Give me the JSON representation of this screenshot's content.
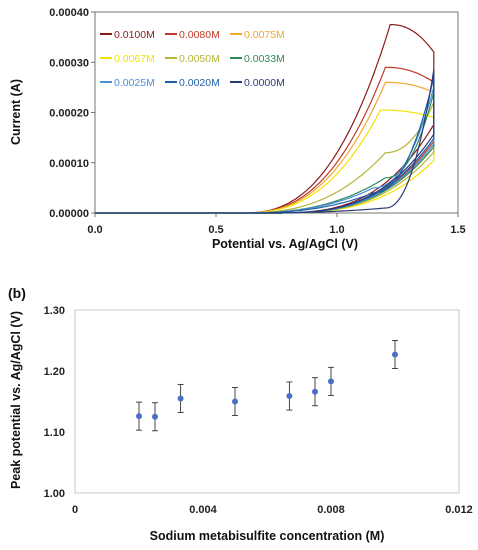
{
  "chart_data": [
    {
      "panel": "",
      "type": "line",
      "title": "",
      "xlabel": "Potential vs. Ag/AgCl (V)",
      "ylabel": "Current (A)",
      "xlim": [
        0,
        1.5
      ],
      "ylim": [
        0,
        0.0004
      ],
      "xticks": [
        0,
        0.5,
        1,
        1.5
      ],
      "xtick_labels": [
        "0.0",
        "0.5",
        "1.0",
        "1.5"
      ],
      "yticks": [
        0,
        0.0001,
        0.0002,
        0.0003,
        0.0004
      ],
      "ytick_labels": [
        "0.00000",
        "0.00010",
        "0.00020",
        "0.00030",
        "0.00040"
      ],
      "grid": false,
      "legend_position": "top-left",
      "series": [
        {
          "name": "0.0100M",
          "color": "#8b1a1a",
          "peak_x": 1.22,
          "peak_y": 0.000375,
          "end_y": 0.00032,
          "x": [
            0,
            0.6,
            0.8,
            1.0,
            1.1,
            1.22,
            1.4
          ],
          "y": [
            0,
            4e-06,
            3e-05,
            0.00018,
            0.00029,
            0.000375,
            0.00032
          ]
        },
        {
          "name": "0.0080M",
          "color": "#c0392b",
          "peak_x": 1.2,
          "peak_y": 0.00029,
          "end_y": 0.00026,
          "x": [
            0,
            0.6,
            0.8,
            1.0,
            1.1,
            1.2,
            1.4
          ],
          "y": [
            0,
            4e-06,
            3e-05,
            0.00016,
            0.00025,
            0.00029,
            0.00026
          ]
        },
        {
          "name": "0.0075M",
          "color": "#f0a830",
          "peak_x": 1.2,
          "peak_y": 0.00026,
          "end_y": 0.00024,
          "x": [
            0,
            0.6,
            0.8,
            1.0,
            1.1,
            1.2,
            1.4
          ],
          "y": [
            0,
            4e-06,
            3e-05,
            0.00015,
            0.00023,
            0.00026,
            0.00024
          ]
        },
        {
          "name": "0.0067M",
          "color": "#f2e400",
          "peak_x": 1.18,
          "peak_y": 0.000205,
          "end_y": 0.00019,
          "x": [
            0,
            0.6,
            0.8,
            1.0,
            1.1,
            1.18,
            1.4
          ],
          "y": [
            0,
            3e-06,
            2e-05,
            0.00012,
            0.00018,
            0.000205,
            0.00019
          ]
        },
        {
          "name": "0.0050M",
          "color": "#b5b53a",
          "peak_x": 1.2,
          "peak_y": 0.00012,
          "end_y": 0.00022,
          "x": [
            0,
            0.6,
            0.8,
            1.0,
            1.1,
            1.2,
            1.4
          ],
          "y": [
            0,
            3e-06,
            1.5e-05,
            7e-05,
            0.00011,
            0.00012,
            0.00022
          ]
        },
        {
          "name": "0.0033M",
          "color": "#2e8b57",
          "peak_x": 1.2,
          "peak_y": 7e-05,
          "end_y": 0.00024,
          "x": [
            0,
            0.6,
            0.8,
            1.0,
            1.1,
            1.2,
            1.4
          ],
          "y": [
            0,
            2e-06,
            1e-05,
            5e-05,
            7e-05,
            7e-05,
            0.00024
          ]
        },
        {
          "name": "0.0025M",
          "color": "#4a90d9",
          "peak_x": 1.15,
          "peak_y": 5e-05,
          "end_y": 0.00025,
          "x": [
            0,
            0.6,
            0.8,
            1.0,
            1.1,
            1.15,
            1.4
          ],
          "y": [
            0,
            2e-06,
            8e-06,
            4e-05,
            5e-05,
            5e-05,
            0.00025
          ]
        },
        {
          "name": "0.0020M",
          "color": "#1f5fa8",
          "peak_x": 1.15,
          "peak_y": 4e-05,
          "end_y": 0.00027,
          "x": [
            0,
            0.6,
            0.8,
            1.0,
            1.1,
            1.15,
            1.4
          ],
          "y": [
            0,
            2e-06,
            7e-06,
            3e-05,
            4e-05,
            4e-05,
            0.00027
          ]
        },
        {
          "name": "0.0000M",
          "color": "#2b3a7a",
          "peak_x": 1.2,
          "peak_y": 1e-05,
          "end_y": 0.000285,
          "x": [
            0,
            0.6,
            0.8,
            1.0,
            1.2,
            1.3,
            1.4
          ],
          "y": [
            0,
            1e-06,
            3e-06,
            6e-06,
            1e-05,
            5e-05,
            0.000285
          ]
        }
      ]
    },
    {
      "panel": "(b)",
      "type": "scatter",
      "title": "",
      "xlabel": "Sodium metabisulfite concentration (M)",
      "ylabel": "Peak potential vs. Ag/AgCl (V)",
      "xlim": [
        0,
        0.012
      ],
      "ylim": [
        1.0,
        1.3
      ],
      "xticks": [
        0,
        0.004,
        0.008,
        0.012
      ],
      "xtick_labels": [
        "0",
        "0.004",
        "0.008",
        "0.012"
      ],
      "yticks": [
        1.0,
        1.1,
        1.2,
        1.3
      ],
      "ytick_labels": [
        "1.00",
        "1.10",
        "1.20",
        "1.30"
      ],
      "grid": false,
      "marker_color": "#4a6fc4",
      "x": [
        0.002,
        0.0025,
        0.0033,
        0.005,
        0.0067,
        0.0075,
        0.008,
        0.01
      ],
      "y": [
        1.126,
        1.125,
        1.155,
        1.15,
        1.159,
        1.166,
        1.183,
        1.227
      ],
      "yerr": [
        0.023,
        0.023,
        0.023,
        0.023,
        0.023,
        0.023,
        0.023,
        0.023
      ]
    }
  ]
}
